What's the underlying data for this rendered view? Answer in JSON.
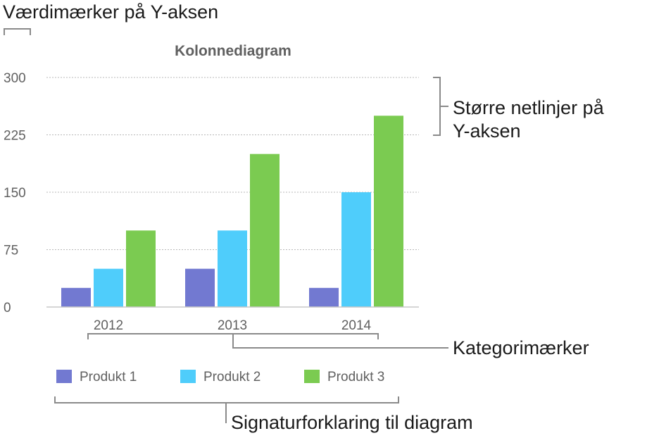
{
  "callouts": {
    "value_labels": "Værdimærker på Y-aksen",
    "gridlines_line1": "Større netlinjer på",
    "gridlines_line2": "Y-aksen",
    "category_labels": "Kategorimærker",
    "legend": "Signaturforklaring til diagram"
  },
  "chart_data": {
    "type": "bar",
    "title": "Kolonnediagram",
    "categories": [
      "2012",
      "2013",
      "2014"
    ],
    "series": [
      {
        "name": "Produkt 1",
        "color": "#7279d1",
        "values": [
          25,
          50,
          25
        ]
      },
      {
        "name": "Produkt 2",
        "color": "#4fcdfb",
        "values": [
          50,
          100,
          150
        ]
      },
      {
        "name": "Produkt 3",
        "color": "#7bcb51",
        "values": [
          100,
          200,
          250
        ]
      }
    ],
    "ylim": [
      0,
      300
    ],
    "yticks": [
      0,
      75,
      150,
      225,
      300
    ],
    "grid": true,
    "legend_position": "bottom"
  }
}
